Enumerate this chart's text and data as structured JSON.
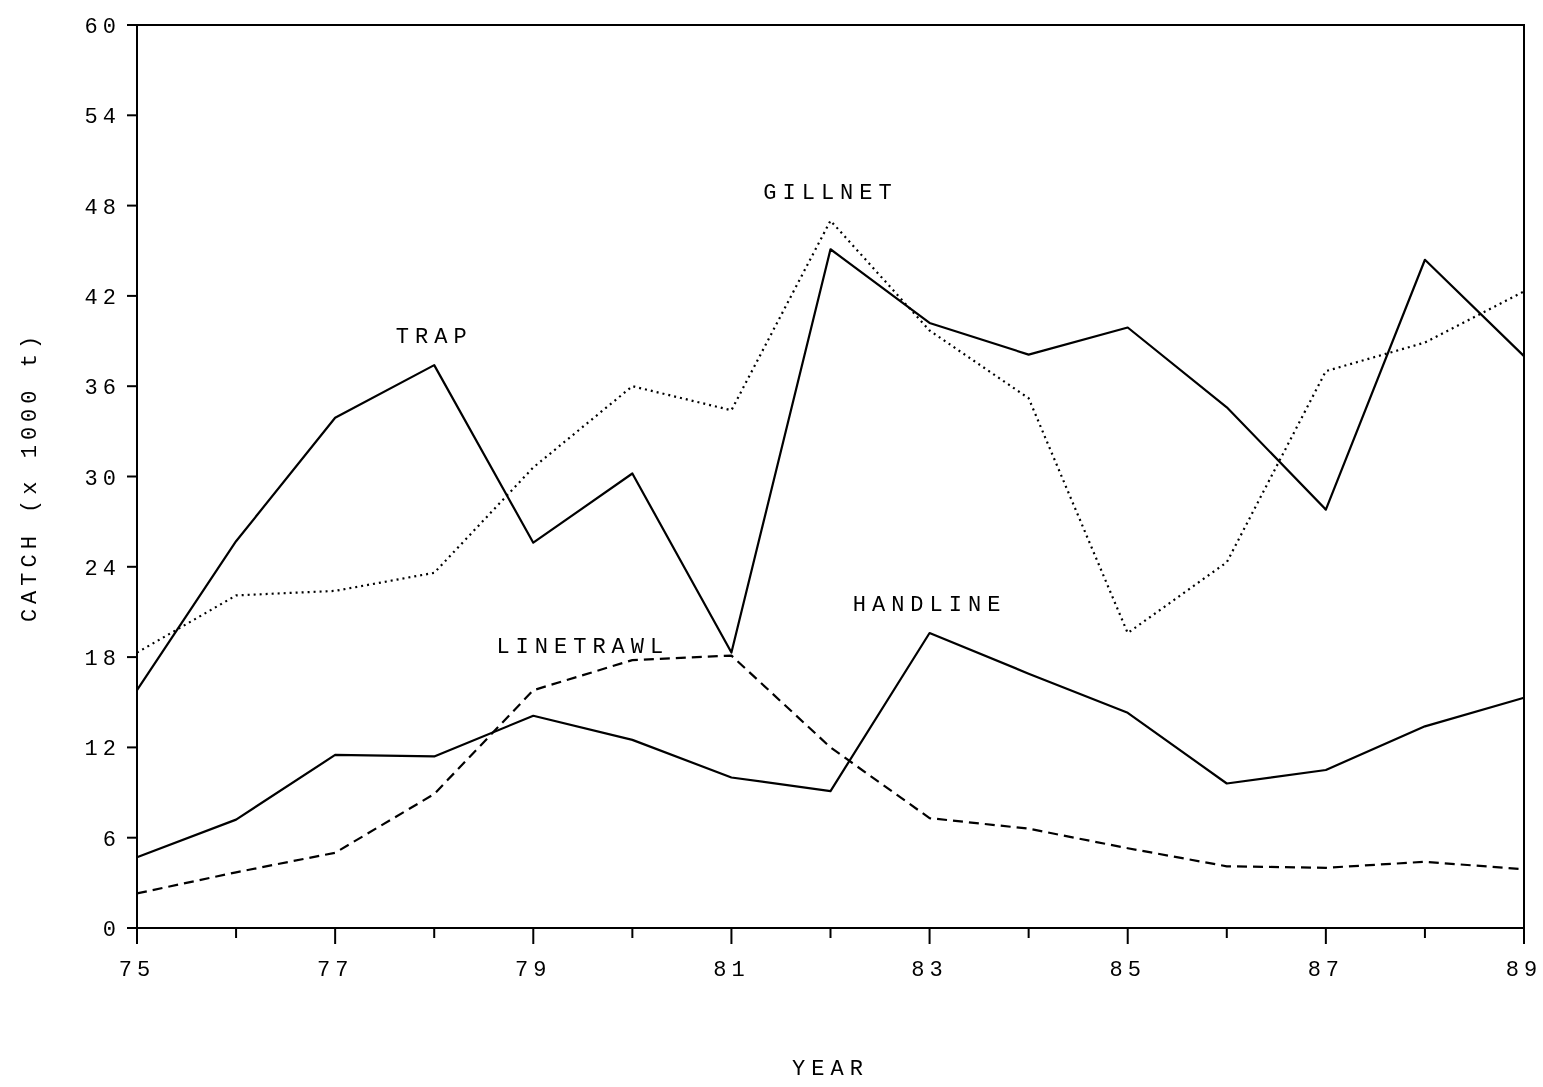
{
  "chart_data": {
    "type": "line",
    "xlabel": "YEAR",
    "ylabel": "CATCH (x 1000 t)",
    "x": [
      75,
      76,
      77,
      78,
      79,
      80,
      81,
      82,
      83,
      84,
      85,
      86,
      87,
      88,
      89
    ],
    "xlim": [
      75,
      89
    ],
    "xticks": [
      75,
      {
        "value": 76,
        "label": null
      },
      77,
      {
        "value": 78,
        "label": null
      },
      79,
      {
        "value": 80,
        "label": null
      },
      81,
      {
        "value": 82,
        "label": null
      },
      83,
      {
        "value": 84,
        "label": null
      },
      85,
      {
        "value": 86,
        "label": null
      },
      87,
      {
        "value": 88,
        "label": null
      },
      89
    ],
    "ylim": [
      0,
      60
    ],
    "yticks": [
      0,
      6,
      12,
      18,
      24,
      30,
      36,
      42,
      48,
      54,
      60
    ],
    "grid": false,
    "marker": "none",
    "series": [
      {
        "name": "TRAP",
        "color": "#000000",
        "line_style": "solid",
        "values": [
          15.8,
          25.7,
          33.9,
          37.4,
          25.6,
          30.2,
          18.3,
          45.1,
          40.2,
          38.1,
          39.9,
          34.6,
          27.8,
          44.4,
          38.0
        ]
      },
      {
        "name": "GILLNET",
        "color": "#000000",
        "line_style": "dotted",
        "values": [
          18.3,
          22.1,
          22.4,
          23.6,
          30.6,
          36.0,
          34.4,
          47.0,
          39.7,
          35.2,
          19.6,
          24.3,
          37.0,
          38.9,
          42.3
        ]
      },
      {
        "name": "LINETRAWL",
        "color": "#000000",
        "line_style": "dashed",
        "values": [
          2.3,
          3.7,
          5.0,
          8.9,
          15.8,
          17.8,
          18.1,
          12.0,
          7.3,
          6.6,
          5.3,
          4.1,
          4.0,
          4.4,
          3.9
        ]
      },
      {
        "name": "HANDLINE",
        "color": "#000000",
        "line_style": "solid",
        "values": [
          4.7,
          7.2,
          11.5,
          11.4,
          14.1,
          12.5,
          10.0,
          9.1,
          19.6,
          16.9,
          14.3,
          9.6,
          10.5,
          13.4,
          15.3
        ]
      }
    ]
  }
}
